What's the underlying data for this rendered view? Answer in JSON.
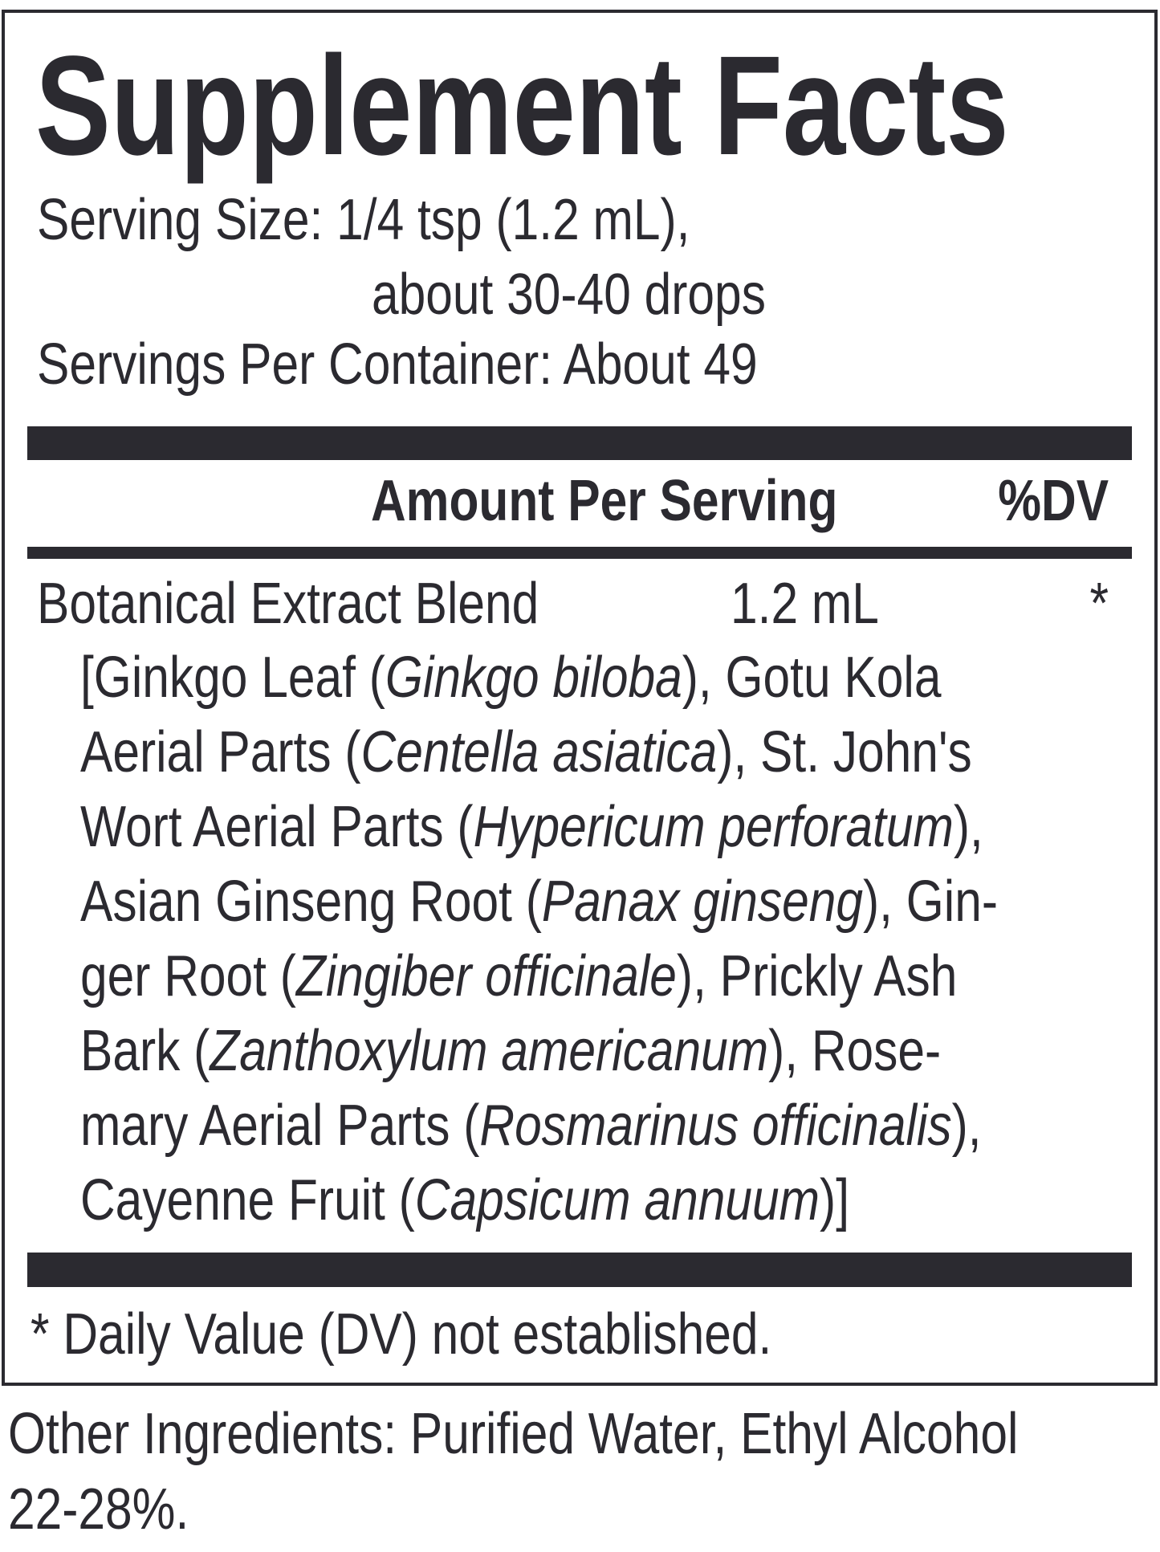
{
  "title": "Supplement Facts",
  "serving_size": "Serving Size: 1/4 tsp (1.2 mL),",
  "serving_size_cont": "about 30-40 drops",
  "servings_per_container": "Servings Per Container: About 49",
  "header": {
    "amount": "Amount Per Serving",
    "dv": "%DV"
  },
  "row": {
    "name": "Botanical Extract Blend",
    "amount": "1.2 mL",
    "dv": "*"
  },
  "ingredient_lines": [
    [
      {
        "t": "[Ginkgo Leaf ("
      },
      {
        "t": "Ginkgo biloba",
        "i": true
      },
      {
        "t": "), Gotu Kola"
      }
    ],
    [
      {
        "t": "Aerial Parts ("
      },
      {
        "t": "Centella asiatica",
        "i": true
      },
      {
        "t": "), St. John's"
      }
    ],
    [
      {
        "t": "Wort Aerial Parts ("
      },
      {
        "t": "Hypericum perforatum",
        "i": true
      },
      {
        "t": "),"
      }
    ],
    [
      {
        "t": "Asian Ginseng Root ("
      },
      {
        "t": "Panax ginseng",
        "i": true
      },
      {
        "t": "), Gin-"
      }
    ],
    [
      {
        "t": "ger Root ("
      },
      {
        "t": "Zingiber officinale",
        "i": true
      },
      {
        "t": "), Prickly Ash"
      }
    ],
    [
      {
        "t": "Bark ("
      },
      {
        "t": "Zanthoxylum americanum",
        "i": true
      },
      {
        "t": "), Rose-"
      }
    ],
    [
      {
        "t": "mary Aerial Parts ("
      },
      {
        "t": "Rosmarinus officinalis",
        "i": true
      },
      {
        "t": "),"
      }
    ],
    [
      {
        "t": "Cayenne Fruit ("
      },
      {
        "t": "Capsicum annuum",
        "i": true
      },
      {
        "t": ")]"
      }
    ]
  ],
  "footnote": "* Daily Value (DV) not established.",
  "other_ingredients": [
    "Other Ingredients: Purified Water, Ethyl Alcohol",
    "22-28%."
  ]
}
